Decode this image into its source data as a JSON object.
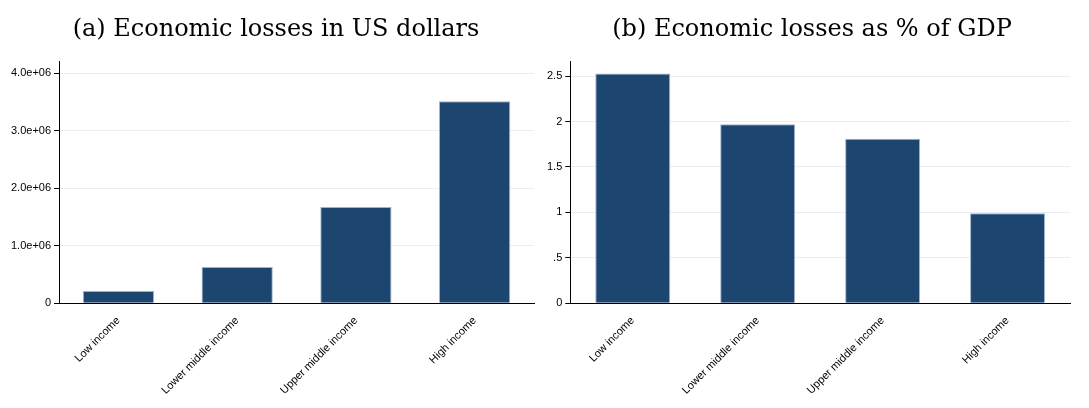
{
  "chart_data": [
    {
      "type": "bar",
      "title": "(a) Economic losses in US dollars",
      "categories": [
        "Low income",
        "Lower middle income",
        "Upper middle income",
        "High income"
      ],
      "values": [
        210000,
        630000,
        1670000,
        3510000
      ],
      "color": "#1c4670",
      "ylim": [
        0,
        4200000
      ],
      "yticks": [
        0,
        {
          "value": 1000000,
          "label": "1.0e+06"
        },
        {
          "value": 2000000,
          "label": "2.0e+06"
        },
        {
          "value": 3000000,
          "label": "3.0e+06"
        },
        {
          "value": 4000000,
          "label": "4.0e+06"
        }
      ],
      "grid": "y"
    },
    {
      "type": "bar",
      "title": "(b) Economic losses as % of GDP",
      "categories": [
        "Low income",
        "Lower middle income",
        "Upper middle income",
        "High income"
      ],
      "values": [
        2.53,
        1.97,
        1.81,
        0.99
      ],
      "color": "#1c4670",
      "ylim": [
        0,
        2.66
      ],
      "yticks": [
        0,
        {
          "value": 0.5,
          "label": ".5"
        },
        1,
        1.5,
        2,
        2.5
      ],
      "grid": "y"
    }
  ]
}
